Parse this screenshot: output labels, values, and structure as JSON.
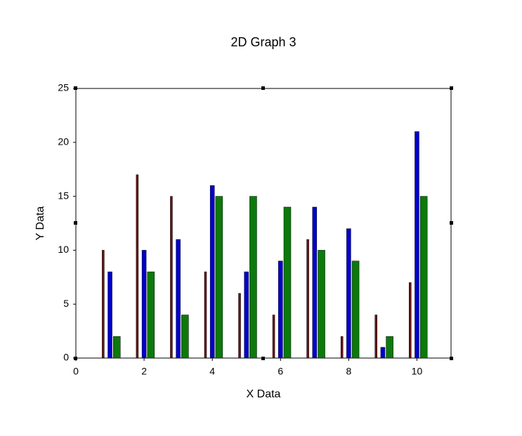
{
  "chart_data": {
    "type": "bar",
    "title": "2D Graph 3",
    "x_label": "X Data",
    "y_label": "Y Data",
    "x": [
      1,
      2,
      3,
      4,
      5,
      6,
      7,
      8,
      9,
      10
    ],
    "series": [
      {
        "color": "#6b1212",
        "values": [
          10,
          17,
          15,
          8,
          6,
          4,
          11,
          2,
          4,
          7
        ]
      },
      {
        "color": "#0000cc",
        "values": [
          8,
          10,
          11,
          16,
          8,
          9,
          14,
          12,
          1,
          21
        ]
      },
      {
        "color": "#0b7a0b",
        "values": [
          2,
          8,
          4,
          15,
          15,
          14,
          10,
          9,
          2,
          15
        ]
      }
    ],
    "xlim": [
      0,
      11
    ],
    "xticks": [
      0,
      2,
      4,
      6,
      8,
      10
    ],
    "ylim": [
      0,
      25
    ],
    "yticks": [
      0,
      5,
      10,
      15,
      20,
      25
    ]
  }
}
